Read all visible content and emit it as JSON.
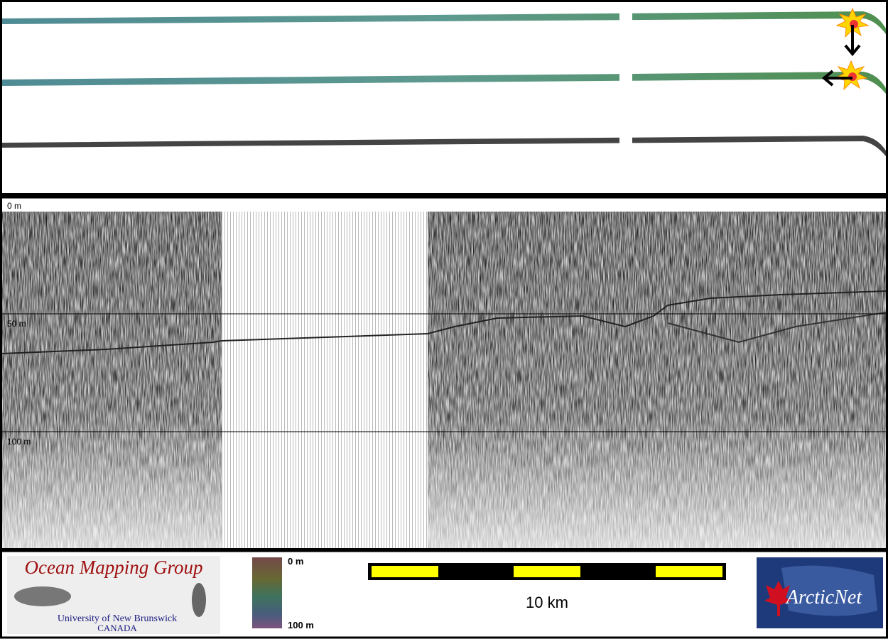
{
  "profile": {
    "depth_labels": [
      "0 m",
      "50 m",
      "100 m"
    ]
  },
  "logo_left": {
    "title": "Ocean Mapping Group",
    "line1": "University of New Brunswick",
    "line2": "CANADA"
  },
  "colorbar": {
    "top_label": "0 m",
    "bottom_label": "100 m"
  },
  "scale_bar": {
    "label": "10 km"
  },
  "logo_right": {
    "title": "ArcticNet"
  }
}
